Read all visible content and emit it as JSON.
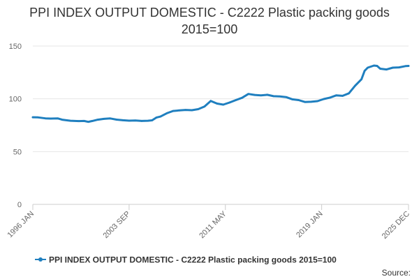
{
  "chart_data": {
    "type": "line",
    "title": "PPI INDEX OUTPUT DOMESTIC - C2222 Plastic packing goods 2015=100",
    "xlabel": "",
    "ylabel": "",
    "ylim": [
      0,
      150
    ],
    "yticks": [
      0,
      50,
      100,
      150
    ],
    "xlim": [
      "1996 JAN",
      "2025 DEC"
    ],
    "xticks": [
      "1996 JAN",
      "2003 SEP",
      "2011 MAY",
      "2019 JAN",
      "2025 DEC"
    ],
    "grid": "horizontal",
    "legend_position": "bottom",
    "colors": {
      "series": "#1f7fbf",
      "grid": "#e6e6e6",
      "axis": "#cccccc"
    },
    "series": [
      {
        "name": "PPI INDEX OUTPUT DOMESTIC - C2222 Plastic packing goods 2015=100",
        "points": [
          [
            "1996 JAN",
            82.5
          ],
          [
            "1996 JUN",
            82.4
          ],
          [
            "1997 JAN",
            81.5
          ],
          [
            "1997 JUN",
            81.3
          ],
          [
            "1998 JAN",
            81.4
          ],
          [
            "1998 MAY",
            80.2
          ],
          [
            "1999 JAN",
            79.2
          ],
          [
            "1999 SEP",
            78.9
          ],
          [
            "2000 FEB",
            79.0
          ],
          [
            "2000 JUN",
            78.2
          ],
          [
            "2000 OCT",
            79.0
          ],
          [
            "2001 MAR",
            80.2
          ],
          [
            "2001 SEP",
            81.0
          ],
          [
            "2002 MAR",
            81.4
          ],
          [
            "2002 SEP",
            80.3
          ],
          [
            "2003 MAR",
            79.7
          ],
          [
            "2003 SEP",
            79.3
          ],
          [
            "2004 MAR",
            79.5
          ],
          [
            "2004 SEP",
            79.0
          ],
          [
            "2005 MAR",
            79.2
          ],
          [
            "2005 JUL",
            79.6
          ],
          [
            "2005 NOV",
            82.2
          ],
          [
            "2006 MAR",
            83.2
          ],
          [
            "2006 SEP",
            86.3
          ],
          [
            "2007 MAR",
            88.5
          ],
          [
            "2007 SEP",
            89.0
          ],
          [
            "2008 MAR",
            89.5
          ],
          [
            "2008 SEP",
            89.2
          ],
          [
            "2009 MAR",
            90.2
          ],
          [
            "2009 SEP",
            92.7
          ],
          [
            "2010 MAR",
            98.0
          ],
          [
            "2010 SEP",
            95.5
          ],
          [
            "2011 MAR",
            94.5
          ],
          [
            "2011 SEP",
            96.5
          ],
          [
            "2012 MAR",
            98.8
          ],
          [
            "2012 SEP",
            101.0
          ],
          [
            "2013 MAR",
            104.6
          ],
          [
            "2013 SEP",
            103.7
          ],
          [
            "2014 MAR",
            103.3
          ],
          [
            "2014 SEP",
            103.8
          ],
          [
            "2015 MAR",
            102.5
          ],
          [
            "2015 SEP",
            102.3
          ],
          [
            "2016 MAR",
            101.6
          ],
          [
            "2016 SEP",
            99.5
          ],
          [
            "2017 MAR",
            98.8
          ],
          [
            "2017 SEP",
            97.0
          ],
          [
            "2018 MAR",
            97.2
          ],
          [
            "2018 SEP",
            97.8
          ],
          [
            "2019 MAR",
            99.8
          ],
          [
            "2019 SEP",
            101.2
          ],
          [
            "2020 MAR",
            103.3
          ],
          [
            "2020 SEP",
            102.8
          ],
          [
            "2021 MAR",
            105.2
          ],
          [
            "2021 SEP",
            112.5
          ],
          [
            "2022 MAR",
            118.5
          ],
          [
            "2022 JUN",
            126.5
          ],
          [
            "2022 SEP",
            129.5
          ],
          [
            "2023 MAR",
            131.5
          ],
          [
            "2023 JUN",
            131.2
          ],
          [
            "2023 SEP",
            128.5
          ],
          [
            "2024 MAR",
            127.8
          ],
          [
            "2024 SEP",
            129.5
          ],
          [
            "2025 MAR",
            129.8
          ],
          [
            "2025 SEP",
            131.0
          ],
          [
            "2025 DEC",
            131.2
          ]
        ]
      }
    ]
  },
  "footer": {
    "source_label": "Source:"
  }
}
